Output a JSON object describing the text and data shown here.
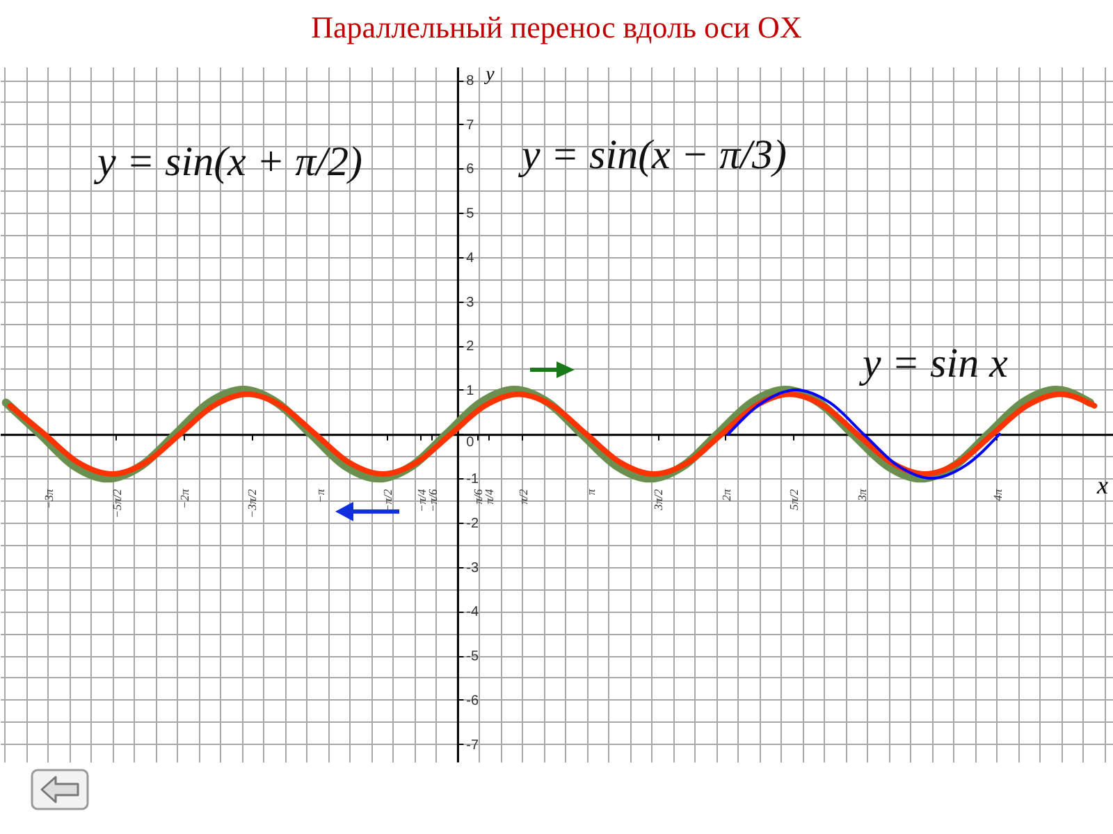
{
  "chart_data": {
    "type": "line",
    "title": "Параллельный перенос вдоль оси OX",
    "xlabel": "x",
    "ylabel": "y",
    "annotations": [
      "y = sin(x + π/2)",
      "y = sin(x − π/3)"
    ],
    "xlim": [
      -10.6,
      15.2
    ],
    "ylim": [
      -7.4,
      8.3
    ],
    "xticks": [
      {
        "value": -9.42,
        "label": "−3π"
      },
      {
        "value": -7.85,
        "label": "−5π/2"
      },
      {
        "value": -6.28,
        "label": "−2π"
      },
      {
        "value": -4.71,
        "label": "−3π/2"
      },
      {
        "value": -3.14,
        "label": "−π"
      },
      {
        "value": -1.57,
        "label": "−π/2"
      },
      {
        "value": -0.785,
        "label": "−π/4"
      },
      {
        "value": -0.524,
        "label": "−π/6"
      },
      {
        "value": 0.524,
        "label": "π/6"
      },
      {
        "value": 0.785,
        "label": "π/4"
      },
      {
        "value": 1.57,
        "label": "π/2"
      },
      {
        "value": 3.14,
        "label": "π"
      },
      {
        "value": 4.71,
        "label": "3π/2"
      },
      {
        "value": 6.28,
        "label": "2π"
      },
      {
        "value": 7.85,
        "label": "5π/2"
      },
      {
        "value": 9.42,
        "label": "3π"
      },
      {
        "value": 12.57,
        "label": "4π"
      }
    ],
    "yticks": [
      -7,
      -6,
      -5,
      -4,
      -3,
      -2,
      -1,
      0,
      1,
      2,
      3,
      4,
      5,
      6,
      7,
      8
    ],
    "grid": true,
    "series": [
      {
        "color": "#6b8f4e",
        "x": [
          -10.46,
          -9.67,
          -8.89,
          -8.1,
          -7.32,
          -6.53,
          -5.75,
          -4.96,
          -4.18,
          -3.39,
          -2.61,
          -1.82,
          -1.04,
          -0.25,
          0.54,
          1.32,
          2.11,
          2.89,
          3.68,
          4.46,
          5.25,
          6.03,
          6.82,
          7.6,
          8.39,
          9.17,
          9.96,
          10.74,
          11.53,
          12.31,
          13.1,
          13.88,
          14.67
        ],
        "values": [
          0.71,
          0,
          -0.71,
          -1,
          -0.71,
          0,
          0.71,
          1,
          0.71,
          0,
          -0.71,
          -1,
          -0.71,
          0,
          0.71,
          1,
          0.71,
          0,
          -0.71,
          -1,
          -0.71,
          0,
          0.71,
          1,
          0.71,
          0,
          -0.71,
          -1,
          -0.71,
          0,
          0.71,
          1,
          0.71
        ]
      },
      {
        "color": "#ff3300",
        "x": [
          -10.36,
          -9.57,
          -8.79,
          -8.0,
          -7.22,
          -6.43,
          -5.65,
          -4.86,
          -4.08,
          -3.29,
          -2.51,
          -1.72,
          -0.94,
          -0.15,
          0.64,
          1.42,
          2.21,
          2.99,
          3.78,
          4.56,
          5.35,
          6.13,
          6.92,
          7.7,
          8.49,
          9.27,
          10.06,
          10.84,
          11.63,
          12.41,
          13.2,
          13.98,
          14.77
        ],
        "values": [
          0.64,
          0,
          -0.64,
          -0.9,
          -0.64,
          0,
          0.64,
          0.9,
          0.64,
          0,
          -0.64,
          -0.9,
          -0.64,
          0,
          0.64,
          0.9,
          0.64,
          0,
          -0.64,
          -0.9,
          -0.64,
          0,
          0.64,
          0.9,
          0.64,
          0,
          -0.64,
          -0.9,
          -0.64,
          0,
          0.64,
          0.9,
          0.64
        ]
      },
      {
        "name": "y = sin x",
        "color": "#0000ff",
        "x": [
          6.28,
          7.07,
          7.85,
          8.64,
          9.42,
          10.21,
          11.0,
          11.78,
          12.57
        ],
        "values": [
          0,
          0.71,
          1,
          0.71,
          0,
          -0.71,
          -1,
          -0.71,
          0
        ]
      }
    ]
  }
}
